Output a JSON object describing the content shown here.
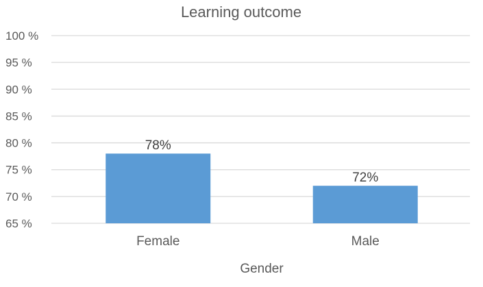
{
  "chart_data": {
    "type": "bar",
    "title": "Learning outcome",
    "xlabel": "Gender",
    "ylabel": "",
    "categories": [
      "Female",
      "Male"
    ],
    "values": [
      78,
      72
    ],
    "data_labels": [
      "78%",
      "72%"
    ],
    "ylim": [
      65,
      100
    ],
    "yticks": [
      65,
      70,
      75,
      80,
      85,
      90,
      95,
      100
    ],
    "ytick_labels": [
      "65 %",
      "70 %",
      "75 %",
      "80 %",
      "85 %",
      "90 %",
      "95 %",
      "100 %"
    ],
    "grid": true,
    "legend": "none",
    "colors": {
      "bar": "#5b9bd5",
      "grid": "#d9d9d9",
      "text": "#595959"
    }
  }
}
